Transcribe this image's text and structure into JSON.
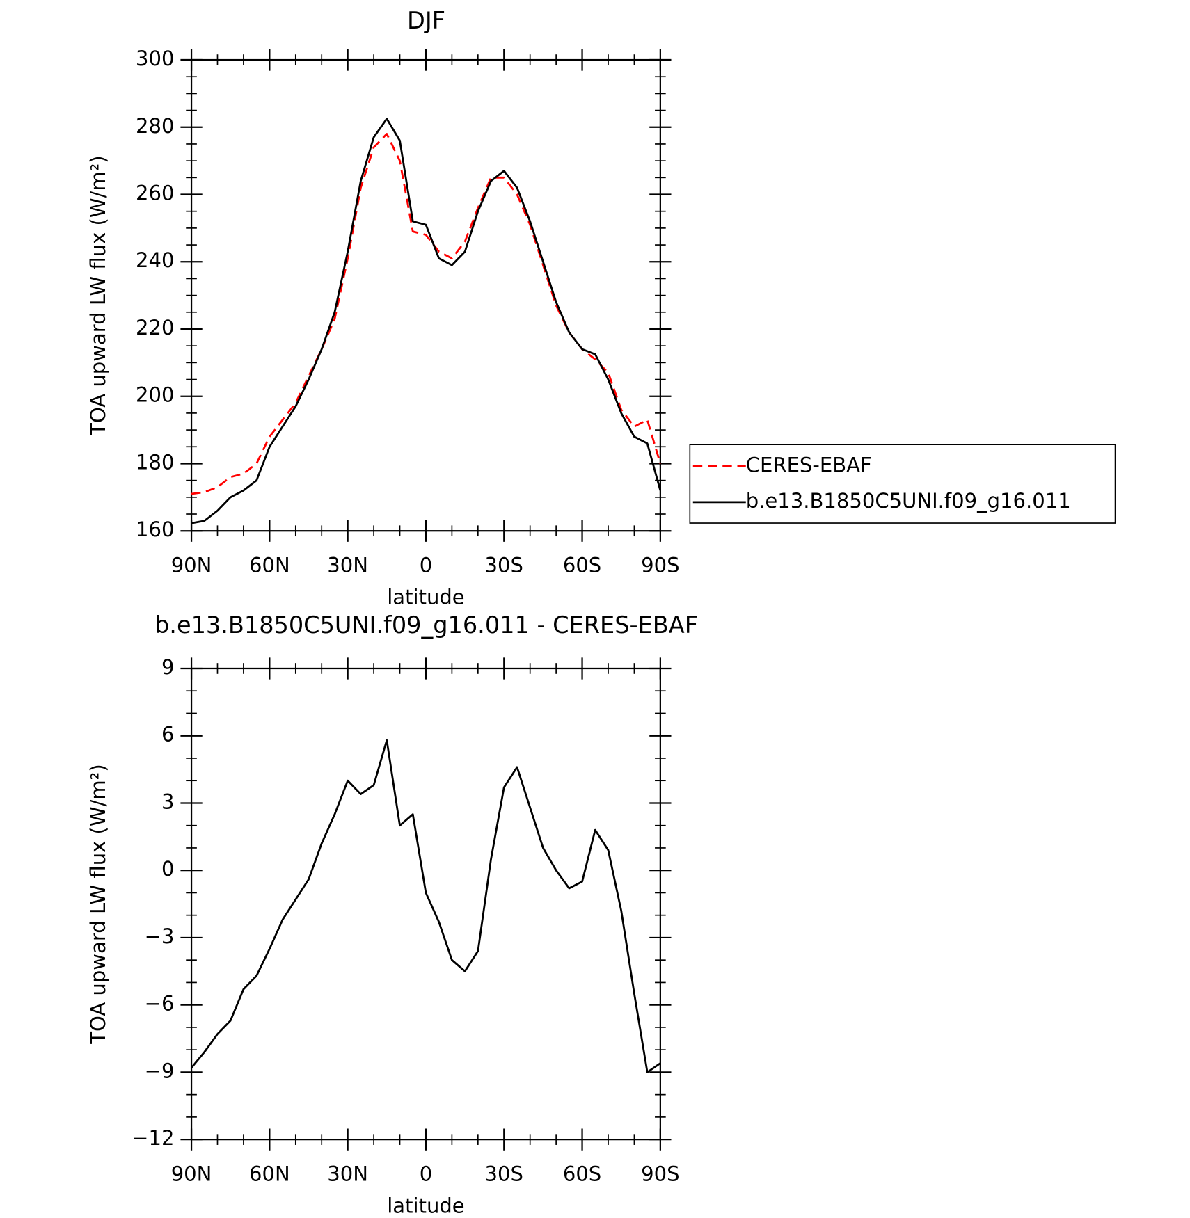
{
  "chart_data": [
    {
      "type": "line",
      "title": "DJF",
      "xlabel": "latitude",
      "ylabel": "TOA upward LW flux (W/m²)",
      "x": [
        90,
        85,
        80,
        75,
        70,
        65,
        60,
        55,
        50,
        45,
        40,
        35,
        30,
        25,
        20,
        15,
        10,
        5,
        0,
        -5,
        -10,
        -15,
        -20,
        -25,
        -30,
        -35,
        -40,
        -45,
        -50,
        -55,
        -60,
        -65,
        -70,
        -75,
        -80,
        -85,
        -90
      ],
      "series": [
        {
          "name": "CERES-EBAF",
          "color": "#ff0000",
          "dash": true,
          "values": [
            171,
            171.5,
            173,
            176,
            177,
            180,
            188,
            193,
            198,
            206,
            214,
            223,
            241,
            262,
            274,
            278,
            270,
            249,
            248,
            243,
            241,
            246,
            256,
            265,
            265,
            260,
            251,
            239,
            227,
            219,
            214,
            211,
            207,
            196,
            191,
            193,
            180
          ]
        },
        {
          "name": "b.e13.B1850C5UNI.f09_g16.011",
          "color": "#000000",
          "dash": false,
          "values": [
            162.3,
            163,
            166,
            170,
            172,
            175,
            185,
            191,
            197,
            205,
            214,
            225,
            243,
            264,
            277,
            282.5,
            276,
            252,
            251,
            241,
            239,
            243,
            255,
            264,
            267,
            262,
            252,
            240,
            228,
            219,
            214,
            212.5,
            205,
            195,
            188,
            186,
            172
          ]
        }
      ],
      "xlim": [
        90,
        -90
      ],
      "xticks": [
        {
          "value": 90,
          "label": "90N"
        },
        {
          "value": 60,
          "label": "60N"
        },
        {
          "value": 30,
          "label": "30N"
        },
        0,
        {
          "value": -30,
          "label": "30S"
        },
        {
          "value": -60,
          "label": "60S"
        },
        {
          "value": -90,
          "label": "90S"
        }
      ],
      "ylim": [
        160,
        300
      ],
      "yticks": [
        160,
        180,
        200,
        220,
        240,
        260,
        280,
        300
      ],
      "legend": "right"
    },
    {
      "type": "line",
      "title": "b.e13.B1850C5UNI.f09_g16.011 - CERES-EBAF",
      "xlabel": "latitude",
      "ylabel": "TOA upward LW flux (W/m²)",
      "x": [
        90,
        85,
        80,
        75,
        70,
        65,
        60,
        55,
        50,
        45,
        40,
        35,
        30,
        25,
        20,
        15,
        10,
        5,
        0,
        -5,
        -10,
        -15,
        -20,
        -25,
        -30,
        -35,
        -40,
        -45,
        -50,
        -55,
        -60,
        -65,
        -70,
        -75,
        -80,
        -85,
        -90
      ],
      "series": [
        {
          "color": "#000000",
          "dash": false,
          "values": [
            -8.8,
            -8.1,
            -7.3,
            -6.7,
            -5.3,
            -4.7,
            -3.5,
            -2.2,
            -1.3,
            -0.4,
            1.2,
            2.5,
            4.0,
            3.4,
            3.8,
            5.8,
            2.0,
            2.5,
            -1.0,
            -2.3,
            -4.0,
            -4.5,
            -3.6,
            0.5,
            3.7,
            4.6,
            2.8,
            1.0,
            0,
            -0.8,
            -0.5,
            1.8,
            0.9,
            -1.8,
            -5.5,
            -9.0,
            -8.6
          ]
        }
      ],
      "xlim": [
        90,
        -90
      ],
      "xticks": [
        {
          "value": 90,
          "label": "90N"
        },
        {
          "value": 60,
          "label": "60N"
        },
        {
          "value": 30,
          "label": "30N"
        },
        0,
        {
          "value": -30,
          "label": "30S"
        },
        {
          "value": -60,
          "label": "60S"
        },
        {
          "value": -90,
          "label": "90S"
        }
      ],
      "ylim": [
        -12,
        9
      ],
      "yticks": [
        {
          "value": -12,
          "label": "−12"
        },
        {
          "value": -9,
          "label": "−9"
        },
        {
          "value": -6,
          "label": "−6"
        },
        {
          "value": -3,
          "label": "−3"
        },
        0,
        3,
        6,
        9
      ]
    }
  ]
}
